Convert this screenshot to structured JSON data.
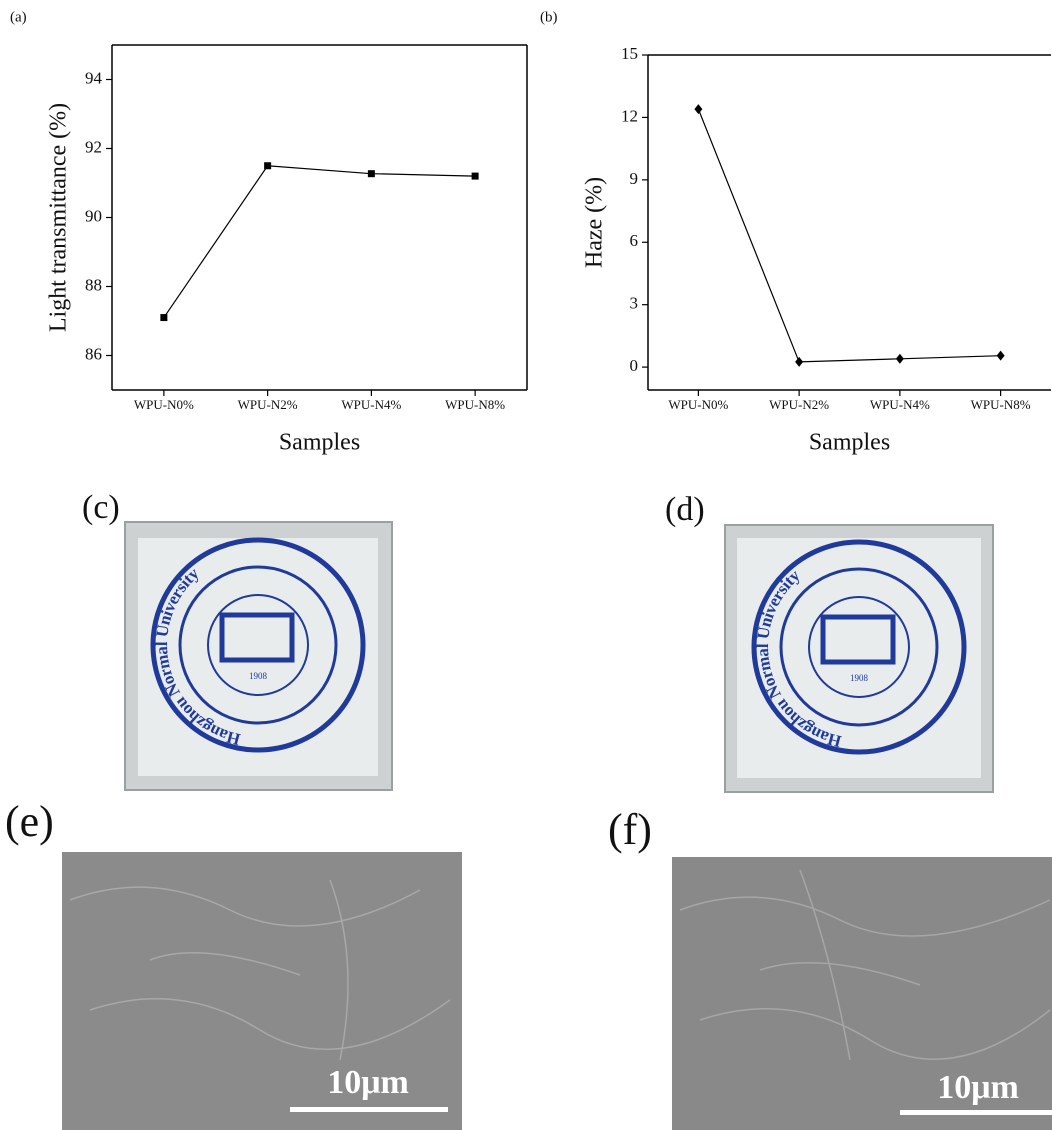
{
  "chart_data": [
    {
      "type": "line",
      "panel": "(a)",
      "ylabel": "Light transmittance (%)",
      "xlabel": "Samples",
      "categories": [
        "WPU-N0%",
        "WPU-N2%",
        "WPU-N4%",
        "WPU-N8%"
      ],
      "values": [
        87.1,
        91.5,
        91.27,
        91.2
      ],
      "color": "#000000",
      "marker": "square",
      "ylim": [
        85,
        95
      ],
      "yticks": [
        86,
        88,
        90,
        92,
        94
      ]
    },
    {
      "type": "line",
      "panel": "(b)",
      "ylabel": "Haze (%)",
      "xlabel": "Samples",
      "categories": [
        "WPU-N0%",
        "WPU-N2%",
        "WPU-N4%",
        "WPU-N8%"
      ],
      "values": [
        12.4,
        0.25,
        0.4,
        0.55
      ],
      "color": "#000000",
      "marker": "diamond",
      "ylim": [
        -1.1,
        15
      ],
      "yticks": [
        0,
        3,
        6,
        9,
        12,
        15
      ]
    }
  ],
  "photos": [
    {
      "label": "(c)",
      "seal_text": "Hangzhou Normal University",
      "year": "1908"
    },
    {
      "label": "(d)",
      "seal_text": "Hangzhou Normal University",
      "year": "1908"
    }
  ],
  "micrographs": [
    {
      "label": "(e)",
      "scale_bar": "10μm"
    },
    {
      "label": "(f)",
      "scale_bar": "10μm"
    }
  ]
}
